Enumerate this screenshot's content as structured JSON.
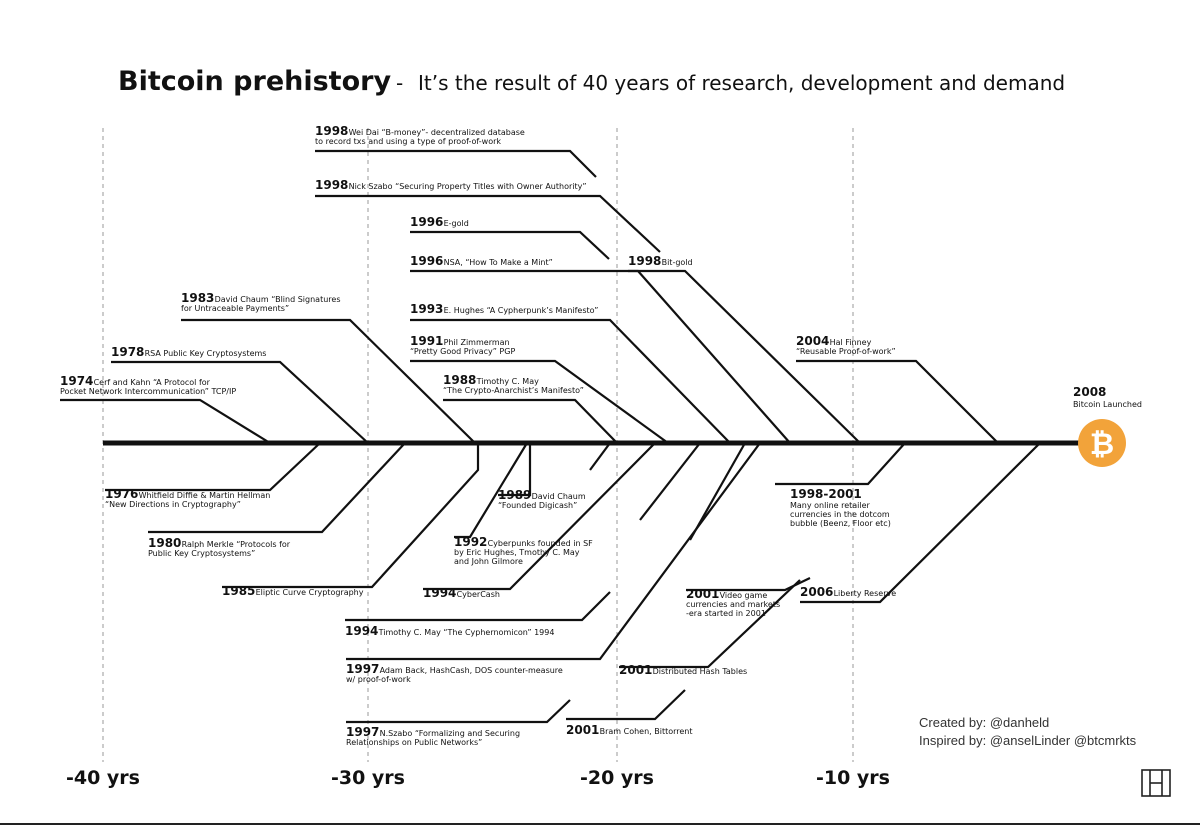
{
  "title": "Bitcoin prehistory",
  "subtitle_sep": "-",
  "subtitle": "It’s the result of 40 years of research, development and demand",
  "axis_labels": [
    "-40 yrs",
    "-30 yrs",
    "-20 yrs",
    "-10 yrs"
  ],
  "events_above": [
    {
      "year": "1998",
      "lines": [
        "Wei Dai “B-money”- decentralized database",
        "to record txs and using a type of proof-of-work"
      ]
    },
    {
      "year": "1998",
      "lines": [
        "Nick Szabo “Securing Property Titles with Owner Authority”"
      ]
    },
    {
      "year": "1996",
      "lines": [
        "E-gold"
      ]
    },
    {
      "year": "1996",
      "lines": [
        "NSA, “How To Make a Mint”"
      ]
    },
    {
      "year": "1998",
      "lines": [
        "Bit-gold"
      ]
    },
    {
      "year": "1983",
      "lines": [
        "David Chaum “Blind Signatures",
        "for Untraceable Payments”"
      ]
    },
    {
      "year": "1993",
      "lines": [
        "E. Hughes “A Cypherpunk’s Manifesto”"
      ]
    },
    {
      "year": "1991",
      "lines": [
        "Phil Zimmerman",
        "“Pretty Good Privacy” PGP"
      ]
    },
    {
      "year": "2004",
      "lines": [
        "Hal Finney",
        "“Reusable Proof-of-work”"
      ]
    },
    {
      "year": "1978",
      "lines": [
        "RSA Public Key Cryptosystems"
      ]
    },
    {
      "year": "1974",
      "lines": [
        "Cerf and Kahn “A Protocol for",
        "Pocket Network Intercommunication” TCP/IP"
      ]
    },
    {
      "year": "1988",
      "lines": [
        "Timothy C. May",
        "“The Crypto-Anarchist’s Manifesto”"
      ]
    }
  ],
  "bitcoin": {
    "year": "2008",
    "label": "Bitcoin Launched",
    "symbol": "₿",
    "color": "#f2a33a"
  },
  "events_below": [
    {
      "year": "1976",
      "lines": [
        "Whitfield Diffie & Martin Hellman",
        "“New Directions in Cryptography”"
      ]
    },
    {
      "year": "1989",
      "lines": [
        "David Chaum",
        "“Founded Digicash”"
      ]
    },
    {
      "year": "1998-2001",
      "lines": [
        "Many online retailer",
        "currencies in the dotcom",
        "bubble (Beenz, Floor etc)"
      ]
    },
    {
      "year": "1980",
      "lines": [
        "Ralph Merkle “Protocols for",
        "Public Key Cryptosystems”"
      ]
    },
    {
      "year": "1992",
      "lines": [
        "Cyberpunks founded in SF",
        "by Eric Hughes, Tmothy C. May",
        "and John Gilmore"
      ]
    },
    {
      "year": "1985",
      "lines": [
        "Eliptic Curve Cryptography"
      ]
    },
    {
      "year": "1994",
      "lines": [
        "CyberCash"
      ]
    },
    {
      "year": "2001",
      "lines": [
        "Video game",
        "currencies and markets",
        "-era started in 2001"
      ]
    },
    {
      "year": "2006",
      "lines": [
        "Liberty Reserve"
      ]
    },
    {
      "year": "1994",
      "lines": [
        "Timothy C. May “The Cyphernomicon” 1994"
      ]
    },
    {
      "year": "1997",
      "lines": [
        "Adam Back, HashCash, DOS counter-measure",
        "w/ proof-of-work"
      ]
    },
    {
      "year": "2001",
      "lines": [
        "Distributed Hash Tables"
      ]
    },
    {
      "year": "1997",
      "lines": [
        "N.Szabo “Formalizing and Securing",
        "Relationships on Public Networks”"
      ]
    },
    {
      "year": "2001",
      "lines": [
        "Bram Cohen, Bittorrent"
      ]
    }
  ],
  "credits": {
    "created": "Created by: @danheld",
    "inspired": "Inspired by: @anselLinder @btcmrkts"
  }
}
